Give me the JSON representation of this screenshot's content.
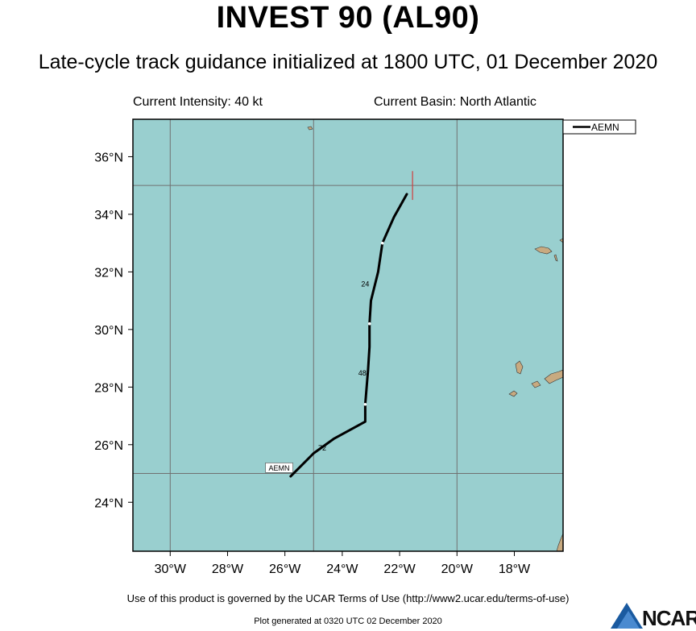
{
  "header": {
    "title": "INVEST 90 (AL90)",
    "subtitle": "Late-cycle track guidance initialized at 1800 UTC, 01 December 2020",
    "intensity": "Current Intensity: 40 kt",
    "basin": "Current Basin: North Atlantic"
  },
  "map": {
    "lon_range": [
      -31.3,
      -16.3
    ],
    "lat_range": [
      22.3,
      37.3
    ],
    "ocean_color": "#99cfcf",
    "land_color": "#c8aa80",
    "grid_color": "#707070",
    "grid_lons": [
      -30,
      -25,
      -20
    ],
    "grid_lats": [
      25,
      35
    ],
    "lon_ticks": [
      {
        "lon": -30,
        "label": "30°W"
      },
      {
        "lon": -28,
        "label": "28°W"
      },
      {
        "lon": -26,
        "label": "26°W"
      },
      {
        "lon": -24,
        "label": "24°W"
      },
      {
        "lon": -22,
        "label": "22°W"
      },
      {
        "lon": -20,
        "label": "20°W"
      },
      {
        "lon": -18,
        "label": "18°W"
      }
    ],
    "lat_ticks": [
      {
        "lat": 36,
        "label": "36°N"
      },
      {
        "lat": 34,
        "label": "34°N"
      },
      {
        "lat": 32,
        "label": "32°N"
      },
      {
        "lat": 30,
        "label": "30°N"
      },
      {
        "lat": 28,
        "label": "28°N"
      },
      {
        "lat": 26,
        "label": "26°N"
      },
      {
        "lat": 24,
        "label": "24°N"
      }
    ],
    "current_position_marker": {
      "lon": -21.55,
      "lat_top": 35.5,
      "lat_bottom": 34.5,
      "color": "#d23c3c"
    }
  },
  "legend": {
    "model": "AEMN"
  },
  "track": {
    "model": "AEMN",
    "color": "#000000",
    "points": [
      [
        -21.75,
        34.7
      ],
      [
        -22.2,
        33.9
      ],
      [
        -22.6,
        33.0
      ],
      [
        -22.75,
        32.0
      ],
      [
        -23.0,
        31.0
      ],
      [
        -23.05,
        30.2
      ],
      [
        -23.05,
        29.4
      ],
      [
        -23.1,
        28.6
      ],
      [
        -23.2,
        27.4
      ],
      [
        -23.2,
        26.8
      ],
      [
        -24.3,
        26.2
      ],
      [
        -25.0,
        25.7
      ],
      [
        -25.8,
        24.9
      ]
    ],
    "tau_ticks": [
      [
        -22.6,
        33.0
      ],
      [
        -23.05,
        30.2
      ],
      [
        -23.2,
        27.4
      ]
    ],
    "tau_labels": [
      {
        "label": "24",
        "lon": -23.2,
        "lat": 31.5
      },
      {
        "label": "48",
        "lon": -23.3,
        "lat": 28.4
      },
      {
        "label": "72",
        "lon": -24.7,
        "lat": 25.8
      }
    ],
    "end_label": {
      "label": "AEMN",
      "lon": -26.2,
      "lat": 25.2
    }
  },
  "footer": {
    "terms": "Use of this product is governed by the UCAR Terms of Use (http://www2.ucar.edu/terms-of-use)",
    "generated": "Plot generated at 0320 UTC   02 December 2020",
    "logo": "NCAR"
  }
}
